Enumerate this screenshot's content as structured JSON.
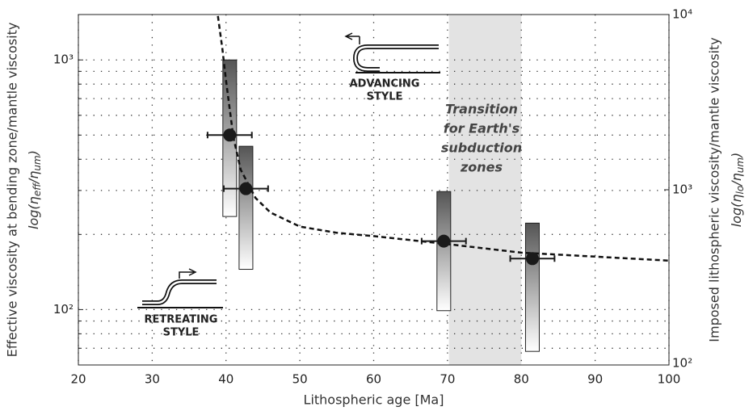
{
  "chart_data": {
    "type": "errorbar",
    "xlabel": "Lithospheric age [Ma]",
    "ylabel": "Effective viscosity at bending zone/mantle viscosity",
    "ylabel_log": {
      "parts": [
        "log(η",
        "eff",
        "/η",
        "um",
        ")"
      ]
    },
    "y2label": "Imposed lithospheric viscosity/mantle viscosity",
    "y2label_log": {
      "parts": [
        "log(η",
        "lo",
        "/η",
        "um",
        ")"
      ]
    },
    "xlim": [
      20,
      100
    ],
    "xticks": [
      20,
      30,
      40,
      50,
      60,
      70,
      80,
      90,
      100
    ],
    "ylim": [
      60,
      1520
    ],
    "log_y": true,
    "yticks": [
      {
        "value": 100,
        "label": "10²"
      },
      {
        "value": 1000,
        "label": "10³"
      }
    ],
    "yminor_ticks": [
      70,
      80,
      90,
      200,
      300,
      400,
      500,
      600,
      700,
      800,
      900
    ],
    "y2lim": [
      100,
      10000
    ],
    "y2ticks": [
      {
        "value": 100,
        "label": "10²"
      },
      {
        "value": 1000,
        "label": "10³"
      },
      {
        "value": 10000,
        "label": "10⁴"
      }
    ],
    "grid": true,
    "band": {
      "x": [
        70.2,
        80
      ],
      "color": "#e3e3e3",
      "label": [
        "Transition",
        "for Earth's",
        "subduction",
        "zones"
      ]
    },
    "points": {
      "x": [
        40.5,
        42.7,
        69.5,
        81.5
      ],
      "y": [
        500,
        305,
        188,
        160
      ],
      "xerr": [
        3,
        3,
        3,
        3
      ],
      "color": "#1a1a1a"
    },
    "ranges": {
      "low": [
        236,
        145,
        99,
        68
      ],
      "high": [
        1000,
        451,
        297,
        222
      ]
    },
    "curve": {
      "x": [
        38.9,
        39.5,
        40,
        41,
        42,
        44,
        46,
        50,
        55,
        60,
        70,
        80,
        90,
        100
      ],
      "y": [
        1500,
        1110,
        824,
        489,
        363,
        280,
        245,
        215,
        203,
        197,
        183,
        169,
        163,
        157
      ]
    },
    "annotations": {
      "advancing": [
        "ADVANCING",
        "STYLE"
      ],
      "retreating": [
        "RETREATING",
        "STYLE"
      ]
    }
  }
}
